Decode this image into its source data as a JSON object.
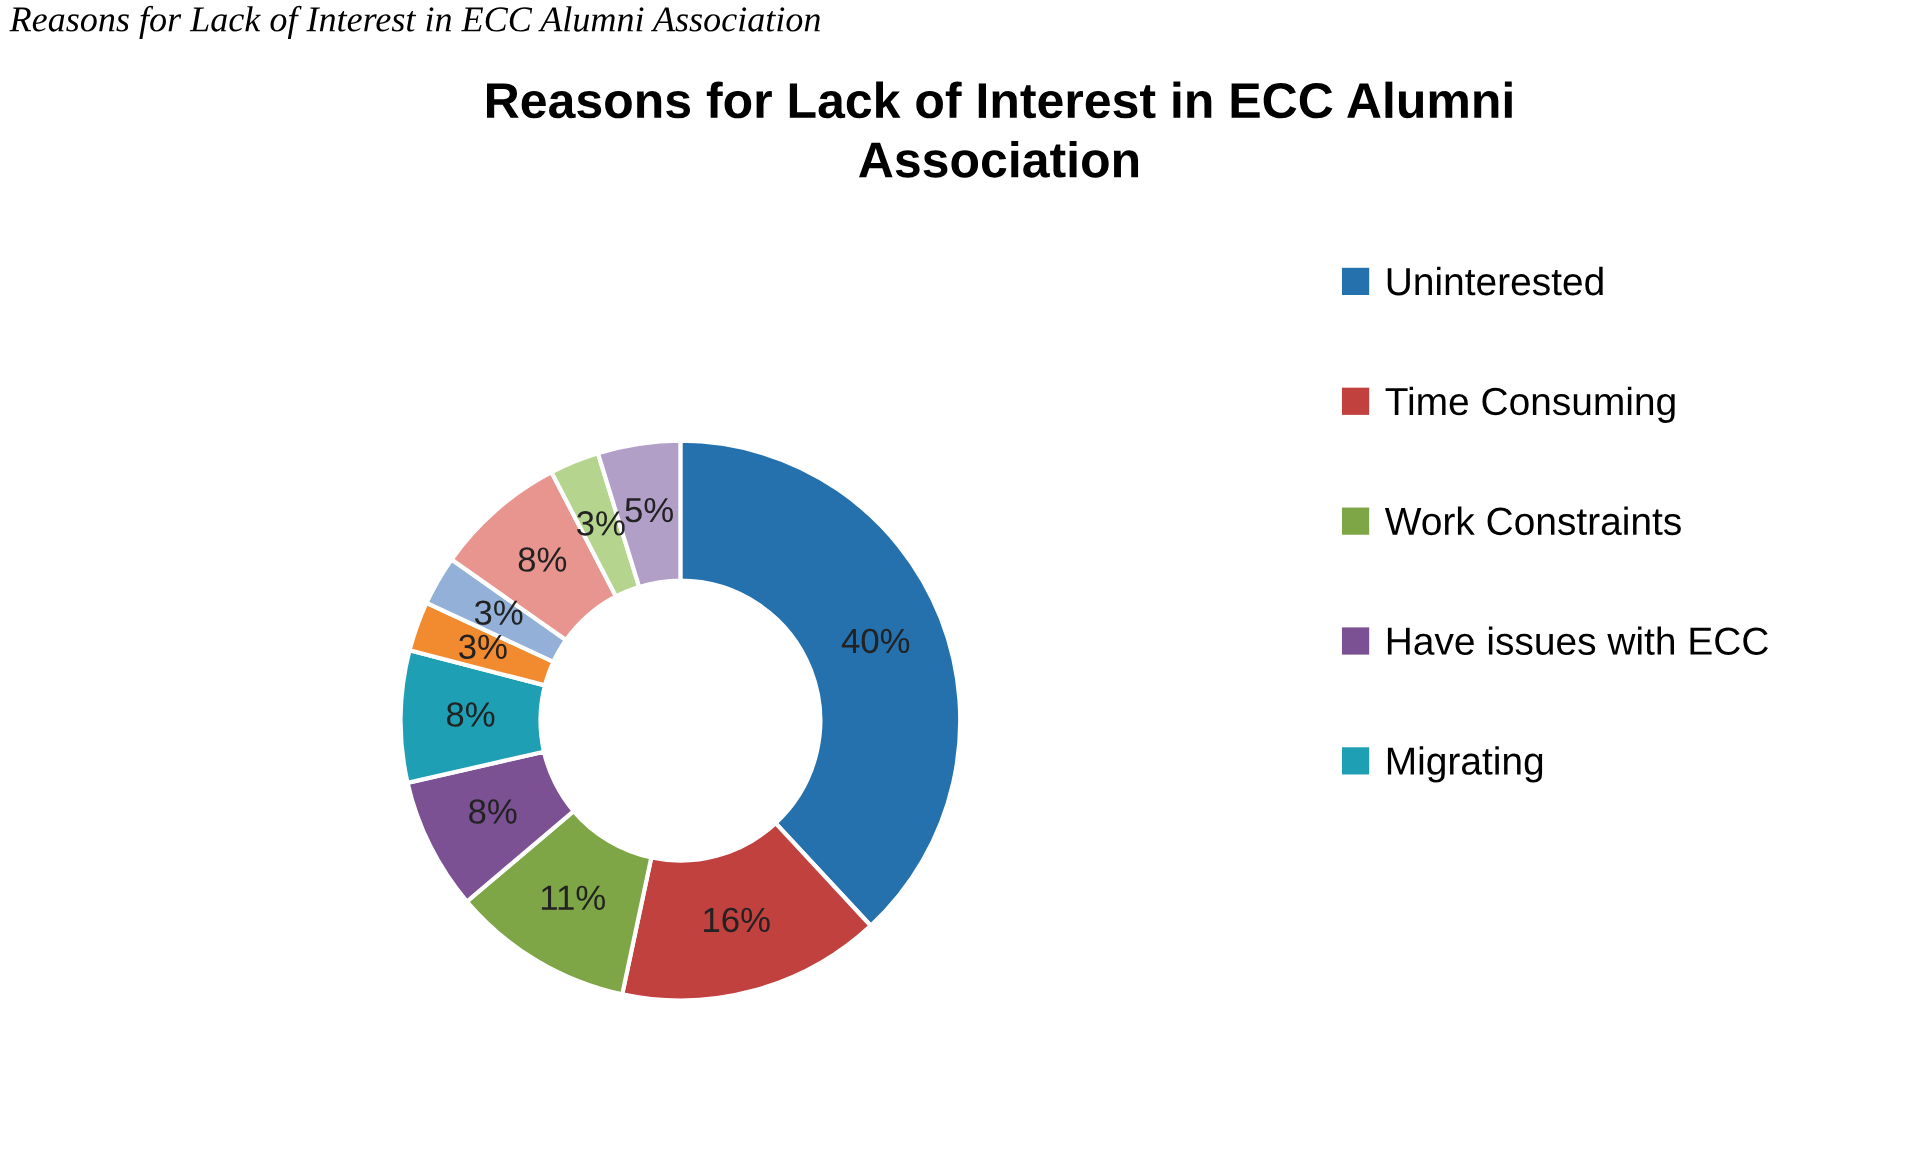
{
  "chart_data": {
    "type": "donut",
    "title": "Reasons for Lack of Interest in ECC Alumni\nAssociation",
    "annotations": [
      "Reasons for Lack of Interest in ECC Alumni Association"
    ],
    "categories": [
      "Uninterested",
      "Time Consuming",
      "Work Constraints",
      "Have issues with ECC",
      "Migrating",
      null,
      null,
      null,
      null,
      null
    ],
    "values": [
      40,
      16,
      11,
      8,
      8,
      3,
      3,
      8,
      3,
      5
    ],
    "colors": [
      "#2471ad",
      "#c1413f",
      "#7fa646",
      "#7b5193",
      "#1f9fb4",
      "#f28a2f",
      "#92b0d8",
      "#e8958f",
      "#b5d48d",
      "#b19fc8"
    ],
    "value_labels": [
      "40%",
      "16%",
      "11%",
      "8%",
      "8%",
      "3%",
      "3%",
      "8%",
      "3%",
      "5%"
    ],
    "legend": "right"
  }
}
